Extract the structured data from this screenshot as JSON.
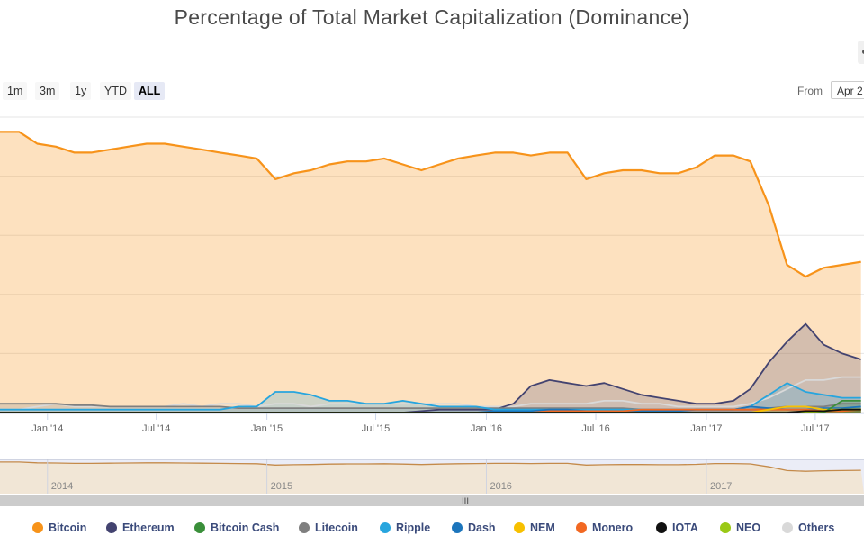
{
  "title": "Percentage of Total Market Capitalization (Dominance)",
  "range_selector": {
    "buttons": [
      "1m",
      "3m",
      "1y",
      "YTD",
      "ALL"
    ],
    "active": "ALL",
    "from_label": "From",
    "from_value": "Apr 2"
  },
  "navigator": {
    "year_labels": [
      "2014",
      "2015",
      "2016",
      "2017"
    ],
    "handle_glyph": "III"
  },
  "chart_data": {
    "type": "area",
    "title": "Percentage of Total Market Capitalization (Dominance)",
    "x_tick_labels": [
      "Jan '14",
      "Jul '14",
      "Jan '15",
      "Jul '15",
      "Jan '16",
      "Jul '16",
      "Jan '17",
      "Jul '17"
    ],
    "x_range": [
      "2013-10-14",
      "2017-09-20"
    ],
    "ylim": [
      0,
      100
    ],
    "y_tick_labels": [],
    "grid": true,
    "legend_position": "bottom",
    "colors": {
      "Bitcoin": "#f7931a",
      "Ethereum": "#434370",
      "Bitcoin Cash": "#3a8f3a",
      "Litecoin": "#7f7f7f",
      "Ripple": "#27a5de",
      "Dash": "#1c75bc",
      "NEM": "#f7c000",
      "Monero": "#f26822",
      "IOTA": "#111111",
      "NEO": "#9ac916",
      "Others": "#d9d9d9"
    },
    "x": [
      "2013-10-14",
      "2013-11-15",
      "2013-12-15",
      "2014-01-15",
      "2014-02-15",
      "2014-03-15",
      "2014-04-15",
      "2014-05-15",
      "2014-06-15",
      "2014-07-15",
      "2014-08-15",
      "2014-09-15",
      "2014-10-15",
      "2014-11-15",
      "2014-12-15",
      "2015-01-15",
      "2015-02-15",
      "2015-03-15",
      "2015-04-15",
      "2015-05-15",
      "2015-06-15",
      "2015-07-15",
      "2015-08-15",
      "2015-09-15",
      "2015-10-15",
      "2015-11-15",
      "2015-12-15",
      "2016-01-15",
      "2016-02-15",
      "2016-03-15",
      "2016-04-15",
      "2016-05-15",
      "2016-06-15",
      "2016-07-15",
      "2016-08-15",
      "2016-09-15",
      "2016-10-15",
      "2016-11-15",
      "2016-12-15",
      "2017-01-15",
      "2017-02-15",
      "2017-03-15",
      "2017-04-15",
      "2017-05-15",
      "2017-06-15",
      "2017-07-15",
      "2017-08-15",
      "2017-09-15"
    ],
    "series": [
      {
        "name": "Bitcoin",
        "values": [
          95,
          95,
          91,
          90,
          88,
          88,
          89,
          90,
          91,
          91,
          90,
          89,
          88,
          87,
          86,
          79,
          81,
          82,
          84,
          85,
          85,
          86,
          84,
          82,
          84,
          86,
          87,
          88,
          88,
          87,
          88,
          88,
          79,
          81,
          82,
          82,
          81,
          81,
          83,
          87,
          87,
          85,
          70,
          50,
          46,
          49,
          50,
          51
        ]
      },
      {
        "name": "Ethereum",
        "values": [
          0,
          0,
          0,
          0,
          0,
          0,
          0,
          0,
          0,
          0,
          0,
          0,
          0,
          0,
          0,
          0,
          0,
          0,
          0,
          0,
          0,
          0,
          0,
          0.5,
          1,
          1,
          1,
          1,
          3,
          9,
          11,
          10,
          9,
          10,
          8,
          6,
          5,
          4,
          3,
          3,
          4,
          8,
          17,
          24,
          30,
          23,
          20,
          18
        ]
      },
      {
        "name": "Bitcoin Cash",
        "values": [
          0,
          0,
          0,
          0,
          0,
          0,
          0,
          0,
          0,
          0,
          0,
          0,
          0,
          0,
          0,
          0,
          0,
          0,
          0,
          0,
          0,
          0,
          0,
          0,
          0,
          0,
          0,
          0,
          0,
          0,
          0,
          0,
          0,
          0,
          0,
          0,
          0,
          0,
          0,
          0,
          0,
          0,
          0,
          0,
          0,
          0,
          4,
          4
        ]
      },
      {
        "name": "Litecoin",
        "values": [
          3,
          3,
          3,
          3,
          2.5,
          2.5,
          2,
          2,
          2,
          2,
          2,
          2,
          2,
          1.5,
          1.5,
          1.5,
          1.5,
          1.5,
          1.5,
          1.5,
          1.5,
          1.5,
          1.5,
          1.5,
          1.5,
          1.5,
          1.5,
          1.5,
          1.5,
          1.5,
          1.5,
          1.5,
          1.5,
          1.5,
          1.5,
          1,
          1,
          1,
          1,
          1,
          1,
          1,
          1.5,
          2,
          2,
          2,
          3,
          3
        ]
      },
      {
        "name": "Ripple",
        "values": [
          1,
          1,
          1,
          1,
          1,
          1,
          1,
          1,
          1,
          1,
          1,
          1,
          1,
          2,
          2,
          7,
          7,
          6,
          4,
          4,
          3,
          3,
          4,
          3,
          2,
          2,
          2,
          1,
          1,
          1,
          1,
          1,
          1,
          1,
          1,
          1,
          1,
          1,
          1,
          1,
          1,
          2,
          6,
          10,
          7,
          6,
          5,
          5
        ]
      },
      {
        "name": "Dash",
        "values": [
          0,
          0,
          0,
          0,
          0,
          0,
          0,
          0,
          0,
          0,
          0,
          0,
          0,
          0,
          0,
          0,
          0,
          0,
          0,
          0,
          0,
          0,
          0,
          0,
          0,
          0,
          0,
          0.5,
          0.5,
          0.5,
          1,
          1,
          0.5,
          0.5,
          0.5,
          0.5,
          0.5,
          0.5,
          1,
          1,
          1,
          2,
          1.5,
          1,
          1,
          1.5,
          1.5,
          2
        ]
      },
      {
        "name": "NEM",
        "values": [
          0,
          0,
          0,
          0,
          0,
          0,
          0,
          0,
          0,
          0,
          0,
          0,
          0,
          0,
          0,
          0,
          0,
          0,
          0,
          0,
          0,
          0,
          0,
          0,
          0,
          0,
          0,
          0,
          0,
          0,
          0,
          0,
          0,
          0,
          0,
          0,
          0,
          0,
          0,
          0,
          0,
          0,
          1,
          2,
          2,
          1,
          1,
          1
        ]
      },
      {
        "name": "Monero",
        "values": [
          0,
          0,
          0,
          0,
          0,
          0,
          0,
          0,
          0,
          0,
          0,
          0,
          0,
          0,
          0,
          0,
          0,
          0,
          0,
          0,
          0,
          0,
          0,
          0,
          0,
          0,
          0,
          0,
          0,
          0,
          0.5,
          0.5,
          0.5,
          0.5,
          0.5,
          1,
          1,
          1,
          1,
          1,
          1,
          1,
          1,
          1,
          1,
          0.5,
          0.5,
          1
        ]
      },
      {
        "name": "IOTA",
        "values": [
          0,
          0,
          0,
          0,
          0,
          0,
          0,
          0,
          0,
          0,
          0,
          0,
          0,
          0,
          0,
          0,
          0,
          0,
          0,
          0,
          0,
          0,
          0,
          0,
          0,
          0,
          0,
          0,
          0,
          0,
          0,
          0,
          0,
          0,
          0,
          0,
          0,
          0,
          0,
          0,
          0,
          0,
          0,
          0,
          0.5,
          0.5,
          1,
          1
        ]
      },
      {
        "name": "NEO",
        "values": [
          0,
          0,
          0,
          0,
          0,
          0,
          0,
          0,
          0,
          0,
          0,
          0,
          0,
          0,
          0,
          0,
          0,
          0,
          0,
          0,
          0,
          0,
          0,
          0,
          0,
          0,
          0,
          0,
          0,
          0,
          0,
          0,
          0,
          0,
          0,
          0,
          0,
          0,
          0,
          0,
          0,
          0,
          0,
          0,
          0,
          0.5,
          1,
          1
        ]
      },
      {
        "name": "Others",
        "values": [
          1,
          1,
          2,
          3,
          2,
          2,
          2,
          2,
          2,
          2,
          3,
          2,
          3,
          3,
          2,
          3,
          3,
          2,
          3,
          3,
          3,
          3,
          3,
          3,
          3,
          3,
          2,
          2,
          2,
          3,
          3,
          3,
          3,
          4,
          4,
          3,
          3,
          2,
          2,
          2,
          2,
          3,
          5,
          8,
          11,
          11,
          12,
          12
        ]
      }
    ]
  },
  "legend": [
    {
      "name": "Bitcoin",
      "color": "#f7931a"
    },
    {
      "name": "Ethereum",
      "color": "#434370"
    },
    {
      "name": "Bitcoin Cash",
      "color": "#3a8f3a"
    },
    {
      "name": "Litecoin",
      "color": "#7f7f7f"
    },
    {
      "name": "Ripple",
      "color": "#27a5de"
    },
    {
      "name": "Dash",
      "color": "#1c75bc"
    },
    {
      "name": "NEM",
      "color": "#f7c000"
    },
    {
      "name": "Monero",
      "color": "#f26822"
    },
    {
      "name": "IOTA",
      "color": "#111111"
    },
    {
      "name": "NEO",
      "color": "#9ac916"
    },
    {
      "name": "Others",
      "color": "#d9d9d9"
    }
  ]
}
